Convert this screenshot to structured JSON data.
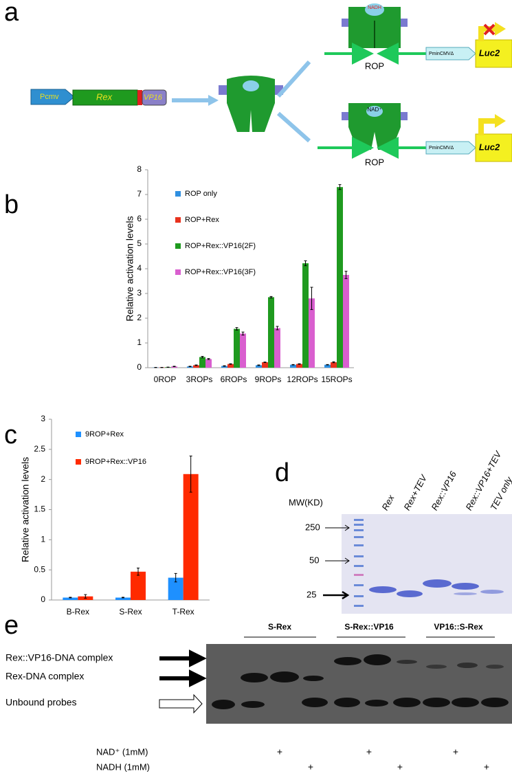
{
  "panels": [
    "a",
    "b",
    "c",
    "d",
    "e"
  ],
  "diagram": {
    "pcmv": "Pcmv",
    "rex": "Rex",
    "vp16": "VP16",
    "nadh": "NADH",
    "nad": "NAD⁺",
    "rop": [
      "ROP",
      "ROP"
    ],
    "promoter": [
      "PminCMVΔ",
      "PminCMVΔ"
    ],
    "luc": [
      "Luc2",
      "Luc2"
    ]
  },
  "chart_data": [
    {
      "type": "bar",
      "y_label": "Relative activation levels",
      "categories": [
        "0ROP",
        "3ROPs",
        "6ROPs",
        "9ROPs",
        "12ROPs",
        "15ROPs"
      ],
      "series": [
        {
          "name": "ROP only",
          "color": "#2f8fe0",
          "values": [
            0.01,
            0.05,
            0.07,
            0.1,
            0.12,
            0.12
          ],
          "errors": [
            0.005,
            0.01,
            0.01,
            0.01,
            0.01,
            0.01
          ]
        },
        {
          "name": "ROP+Rex",
          "color": "#e8321e",
          "values": [
            0.01,
            0.1,
            0.15,
            0.22,
            0.15,
            0.22
          ],
          "errors": [
            0.005,
            0.01,
            0.01,
            0.01,
            0.01,
            0.02
          ]
        },
        {
          "name": "ROP+Rex::VP16(2F)",
          "color": "#1f9a1f",
          "values": [
            0.02,
            0.43,
            1.57,
            2.85,
            4.22,
            7.3
          ],
          "errors": [
            0.005,
            0.03,
            0.05,
            0.03,
            0.1,
            0.1
          ]
        },
        {
          "name": "ROP+Rex::VP16(3F)",
          "color": "#d95fcf",
          "values": [
            0.05,
            0.35,
            1.38,
            1.6,
            2.8,
            3.75
          ],
          "errors": [
            0.01,
            0.02,
            0.06,
            0.07,
            0.45,
            0.15
          ]
        }
      ],
      "ylim": [
        0,
        8
      ],
      "yticks": [
        0,
        1,
        2,
        3,
        4,
        5,
        6,
        7,
        8
      ]
    },
    {
      "type": "bar",
      "y_label": "Relative activation levels",
      "categories": [
        "B-Rex",
        "S-Rex",
        "T-Rex"
      ],
      "series": [
        {
          "name": "9ROP+Rex",
          "color": "#1e90ff",
          "values": [
            0.04,
            0.04,
            0.37
          ],
          "errors": [
            0.005,
            0.005,
            0.07
          ]
        },
        {
          "name": "9ROP+Rex::VP16",
          "color": "#ff2a00",
          "values": [
            0.06,
            0.47,
            2.09
          ],
          "errors": [
            0.03,
            0.06,
            0.3
          ]
        }
      ],
      "ylim": [
        0,
        3
      ],
      "yticks": [
        0,
        0.5,
        1,
        1.5,
        2,
        2.5,
        3
      ]
    }
  ],
  "gel_d": {
    "mw": "MW(KD)",
    "markers": [
      "250",
      "50",
      "25"
    ],
    "lanes": [
      "Rex",
      "Rex+TEV",
      "Rex::VP16",
      "Rex::VP16+TEV",
      "TEV only"
    ]
  },
  "gel_e": {
    "groups": [
      "S-Rex",
      "S-Rex::VP16",
      "VP16::S-Rex"
    ],
    "bands": [
      "Rex::VP16-DNA complex",
      "Rex-DNA complex",
      "Unbound probes"
    ],
    "nad": {
      "label": "NAD⁺ (1mM)",
      "marks": [
        "+",
        "+",
        "+"
      ]
    },
    "nadh": {
      "label": "NADH (1mM)",
      "marks": [
        "+",
        "+",
        "+"
      ]
    }
  }
}
